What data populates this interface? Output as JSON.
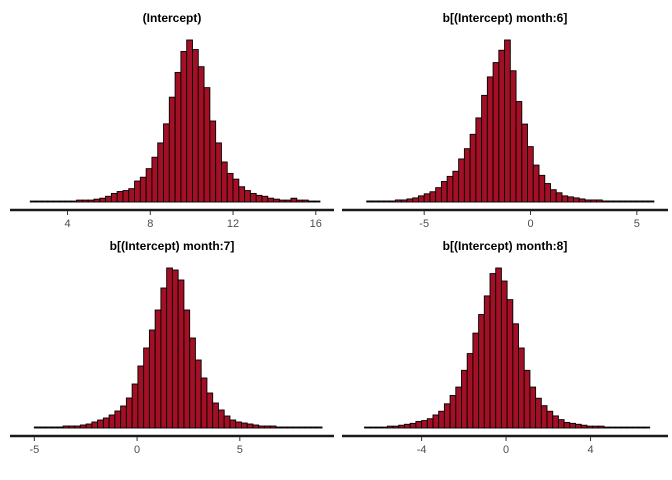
{
  "chart_data": [
    {
      "type": "bar",
      "title": "(Intercept)",
      "xlim": [
        1.8,
        16.3
      ],
      "xticks": [
        4,
        8,
        12,
        16
      ],
      "tick_labels": [
        "4",
        "8",
        "12",
        "16"
      ],
      "bin_start": 2.2,
      "bin_width": 0.28,
      "counts": [
        1,
        1,
        1,
        1,
        1,
        1,
        1,
        1,
        2,
        2,
        2,
        3,
        4,
        6,
        9,
        11,
        12,
        14,
        22,
        26,
        35,
        47,
        62,
        82,
        110,
        136,
        158,
        170,
        160,
        142,
        120,
        85,
        62,
        42,
        30,
        24,
        16,
        12,
        9,
        7,
        6,
        4,
        3,
        2,
        2,
        4,
        2,
        2,
        1,
        1
      ]
    },
    {
      "type": "bar",
      "title": "b[(Intercept) month:6]",
      "xlim": [
        -8.3,
        5.9
      ],
      "xticks": [
        -5,
        0,
        5
      ],
      "tick_labels": [
        "-5",
        "0",
        "5"
      ],
      "bin_start": -7.7,
      "bin_width": 0.27,
      "counts": [
        1,
        1,
        1,
        1,
        1,
        2,
        2,
        3,
        4,
        6,
        8,
        10,
        14,
        20,
        25,
        30,
        42,
        52,
        66,
        82,
        104,
        122,
        136,
        148,
        158,
        128,
        98,
        76,
        54,
        36,
        26,
        18,
        12,
        9,
        6,
        5,
        4,
        3,
        2,
        2,
        2,
        1,
        1,
        1,
        1,
        1,
        1,
        1,
        1,
        1
      ]
    },
    {
      "type": "bar",
      "title": "b[(Intercept) month:7]",
      "xlim": [
        -5.6,
        9.0
      ],
      "xticks": [
        -5,
        0,
        5
      ],
      "tick_labels": [
        "-5",
        "0",
        "5"
      ],
      "bin_start": -5.0,
      "bin_width": 0.28,
      "counts": [
        1,
        1,
        1,
        1,
        1,
        2,
        2,
        2,
        3,
        4,
        6,
        8,
        10,
        13,
        17,
        22,
        30,
        44,
        62,
        80,
        98,
        118,
        140,
        160,
        158,
        148,
        118,
        90,
        68,
        50,
        35,
        25,
        18,
        12,
        8,
        6,
        5,
        4,
        3,
        2,
        2,
        2,
        1,
        1,
        1,
        1,
        1,
        1,
        1,
        1
      ]
    },
    {
      "type": "bar",
      "title": "b[(Intercept) month:8]",
      "xlim": [
        -7.2,
        7.1
      ],
      "xticks": [
        -4,
        0,
        4
      ],
      "tick_labels": [
        "-4",
        "0",
        "4"
      ],
      "bin_start": -6.7,
      "bin_width": 0.27,
      "counts": [
        1,
        1,
        1,
        1,
        2,
        2,
        3,
        4,
        5,
        7,
        8,
        10,
        14,
        18,
        26,
        35,
        44,
        62,
        80,
        102,
        122,
        142,
        166,
        172,
        158,
        138,
        112,
        86,
        62,
        44,
        32,
        24,
        18,
        13,
        9,
        6,
        5,
        4,
        3,
        2,
        2,
        2,
        1,
        1,
        1,
        1,
        1,
        1,
        1,
        1
      ]
    }
  ],
  "colors": {
    "bar_fill": "#a30f24",
    "bar_edge": "#000000",
    "axis": "#1a1a1a",
    "tick_text": "#4d4d4d"
  }
}
